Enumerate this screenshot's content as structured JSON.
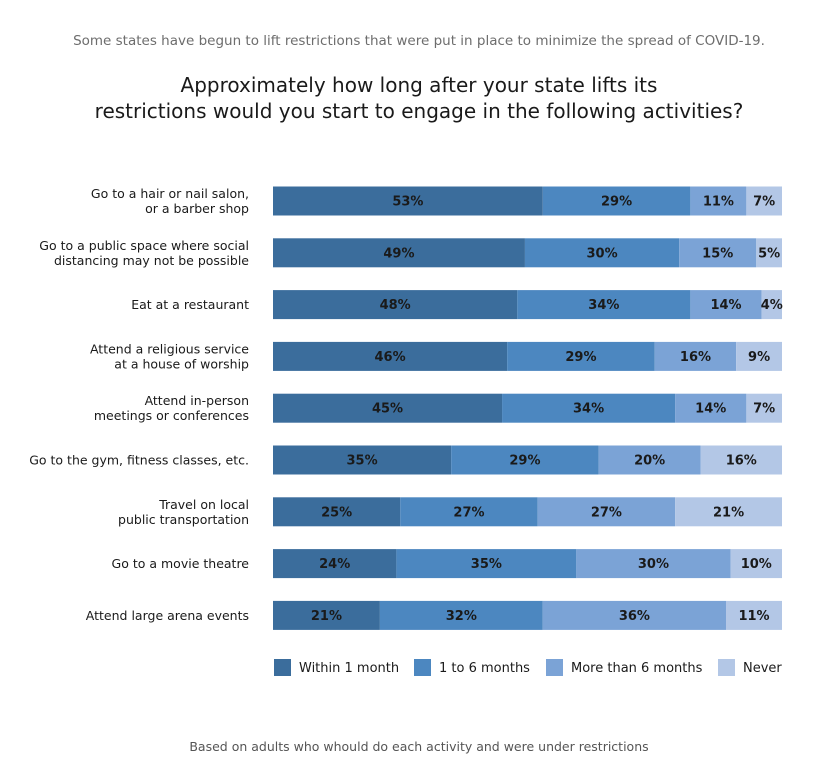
{
  "subtitle": "Some states have begun to lift restrictions that were put in place to minimize the spread of COVID-19.",
  "title": "Approximately how long after your state lifts its\nrestrictions would you start to engage in the following activities?",
  "footnote": "Based on adults who whould do each activity and were under restrictions",
  "chart_data": {
    "type": "bar",
    "orientation": "horizontal",
    "stacked": true,
    "percent_scale": [
      0,
      100
    ],
    "grid": false,
    "legend_position": "bottom",
    "categories": [
      [
        "Go to a hair or nail salon,",
        "or a barber shop"
      ],
      [
        "Go to a public space where social",
        "distancing may not be possible"
      ],
      [
        "Eat at a restaurant"
      ],
      [
        "Attend a religious service",
        "at a house of worship"
      ],
      [
        "Attend in-person",
        "meetings or conferences"
      ],
      [
        "Go to the gym, fitness classes, etc."
      ],
      [
        "Travel on local",
        "public transportation"
      ],
      [
        "Go to a movie theatre"
      ],
      [
        "Attend large arena events"
      ]
    ],
    "series": [
      {
        "name": "Within 1 month",
        "color": "#3b6d9c",
        "values": [
          53,
          49,
          48,
          46,
          45,
          35,
          25,
          24,
          21
        ]
      },
      {
        "name": "1 to 6 months",
        "color": "#4c87c0",
        "values": [
          29,
          30,
          34,
          29,
          34,
          29,
          27,
          35,
          32
        ]
      },
      {
        "name": "More than 6 months",
        "color": "#7ba3d6",
        "values": [
          11,
          15,
          14,
          16,
          14,
          20,
          27,
          30,
          36
        ]
      },
      {
        "name": "Never",
        "color": "#b3c7e6",
        "values": [
          7,
          5,
          4,
          9,
          7,
          16,
          21,
          10,
          11
        ]
      }
    ]
  }
}
